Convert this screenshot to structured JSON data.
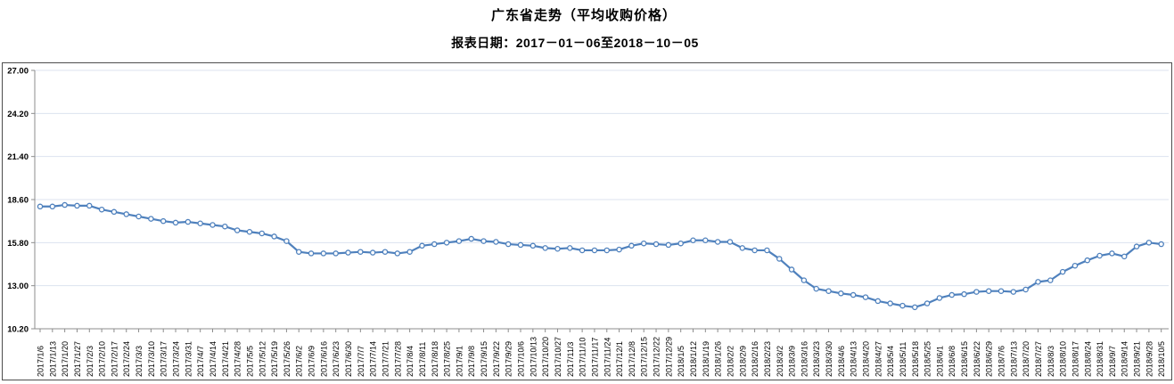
{
  "header": {
    "title": "广东省走势（平均收购价格）",
    "subtitle": "报表日期：2017－01－06至2018－10－05"
  },
  "chart_data": {
    "type": "line",
    "title": "广东省走势（平均收购价格）",
    "subtitle": "报表日期：2017－01－06至2018－10－05",
    "xlabel": "",
    "ylabel": "",
    "ylim": [
      10.2,
      27.0
    ],
    "yticks": [
      "27.00",
      "24.20",
      "21.40",
      "18.60",
      "15.80",
      "13.00",
      "10.20"
    ],
    "ytick_values": [
      27.0,
      24.2,
      21.4,
      18.6,
      15.8,
      13.0,
      10.2
    ],
    "grid": "horizontal",
    "legend": "none",
    "line_color": "#4f81bd",
    "marker": "open-circle",
    "marker_fill": "#ffffff",
    "grid_color": "#dce3ef",
    "axis_color": "#8c8c8c",
    "label_color": "#000000",
    "categories": [
      "2017/1/6",
      "2017/1/13",
      "2017/1/20",
      "2017/1/27",
      "2017/2/3",
      "2017/2/10",
      "2017/2/17",
      "2017/2/24",
      "2017/3/3",
      "2017/3/10",
      "2017/3/17",
      "2017/3/24",
      "2017/3/31",
      "2017/4/7",
      "2017/4/14",
      "2017/4/21",
      "2017/4/28",
      "2017/5/5",
      "2017/5/12",
      "2017/5/19",
      "2017/5/26",
      "2017/6/2",
      "2017/6/9",
      "2017/6/16",
      "2017/6/23",
      "2017/6/30",
      "2017/7/7",
      "2017/7/14",
      "2017/7/21",
      "2017/7/28",
      "2017/8/4",
      "2017/8/11",
      "2017/8/18",
      "2017/8/25",
      "2017/9/1",
      "2017/9/8",
      "2017/9/15",
      "2017/9/22",
      "2017/9/29",
      "2017/10/6",
      "2017/10/13",
      "2017/10/20",
      "2017/10/27",
      "2017/11/3",
      "2017/11/10",
      "2017/11/17",
      "2017/11/24",
      "2017/12/1",
      "2017/12/8",
      "2017/12/15",
      "2017/12/22",
      "2017/12/29",
      "2018/1/5",
      "2018/1/12",
      "2018/1/19",
      "2018/1/26",
      "2018/2/2",
      "2018/2/9",
      "2018/2/16",
      "2018/2/23",
      "2018/3/2",
      "2018/3/9",
      "2018/3/16",
      "2018/3/23",
      "2018/3/30",
      "2018/4/6",
      "2018/4/13",
      "2018/4/20",
      "2018/4/27",
      "2018/5/4",
      "2018/5/11",
      "2018/5/18",
      "2018/5/25",
      "2018/6/1",
      "2018/6/8",
      "2018/6/15",
      "2018/6/22",
      "2018/6/29",
      "2018/7/6",
      "2018/7/13",
      "2018/7/20",
      "2018/7/27",
      "2018/8/3",
      "2018/8/10",
      "2018/8/17",
      "2018/8/24",
      "2018/8/31",
      "2018/9/7",
      "2018/9/14",
      "2018/9/21",
      "2018/9/28",
      "2018/10/5"
    ],
    "values": [
      18.15,
      18.15,
      18.25,
      18.2,
      18.2,
      17.95,
      17.8,
      17.65,
      17.5,
      17.35,
      17.2,
      17.1,
      17.15,
      17.05,
      16.95,
      16.85,
      16.6,
      16.5,
      16.4,
      16.2,
      15.9,
      15.2,
      15.1,
      15.1,
      15.1,
      15.15,
      15.2,
      15.15,
      15.2,
      15.1,
      15.2,
      15.6,
      15.7,
      15.8,
      15.9,
      16.05,
      15.9,
      15.85,
      15.7,
      15.65,
      15.6,
      15.45,
      15.4,
      15.45,
      15.3,
      15.3,
      15.3,
      15.35,
      15.6,
      15.75,
      15.7,
      15.65,
      15.75,
      15.95,
      15.95,
      15.85,
      15.85,
      15.45,
      15.3,
      15.3,
      14.75,
      14.05,
      13.35,
      12.8,
      12.65,
      12.5,
      12.4,
      12.25,
      12.0,
      11.85,
      11.7,
      11.6,
      11.85,
      12.2,
      12.4,
      12.45,
      12.6,
      12.65,
      12.65,
      12.6,
      12.75,
      13.25,
      13.35,
      13.9,
      14.3,
      14.65,
      14.95,
      15.1,
      14.9,
      15.55,
      15.8,
      15.7
    ]
  }
}
